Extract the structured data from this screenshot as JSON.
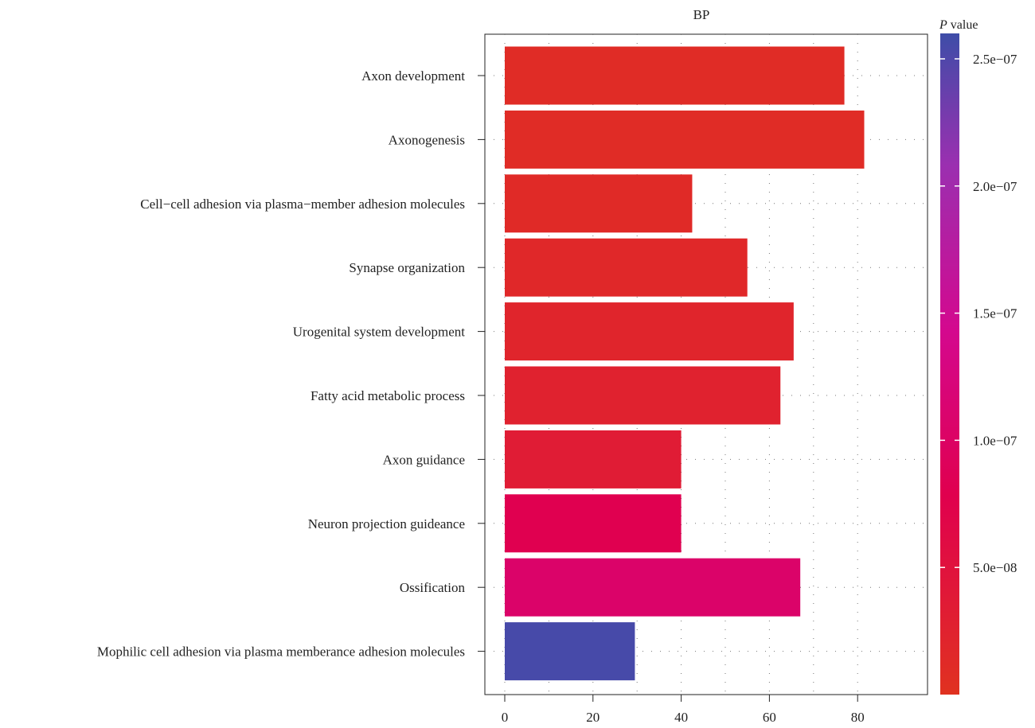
{
  "chart_data": {
    "type": "bar",
    "orientation": "horizontal",
    "title": "BP",
    "categories": [
      "Axon development",
      "Axonogenesis",
      "Cell−cell adhesion via plasma−member adhesion molecules",
      "Synapse organization",
      "Urogenital system development",
      "Fatty acid metabolic process",
      "Axon guidance",
      "Neuron projection guideance",
      "Ossification",
      "Mophilic cell adhesion via plasma memberance adhesion molecules"
    ],
    "values": [
      77,
      81.5,
      42.5,
      55,
      65.5,
      62.5,
      40,
      40,
      67,
      29.5
    ],
    "p_values": [
      1e-08,
      1e-08,
      1.2e-08,
      1.5e-08,
      2e-08,
      2.5e-08,
      3.5e-08,
      8e-08,
      1.05e-07,
      2.55e-07
    ],
    "xlim": [
      0,
      87
    ],
    "x_ticks": [
      "0",
      "20",
      "40",
      "60",
      "80"
    ],
    "x_tick_values": [
      0,
      20,
      40,
      60,
      80
    ],
    "xlabel": "",
    "ylabel": "",
    "grid": true,
    "legend": {
      "title_italic": "P",
      "title_rest": " value",
      "placement": "right",
      "ticks": [
        "2.5e−07",
        "2.0e−07",
        "1.5e−07",
        "1.0e−07",
        "5.0e−08"
      ],
      "tick_values": [
        2.5e-07,
        2e-07,
        1.5e-07,
        1e-07,
        5e-08
      ],
      "range": [
        0,
        2.6e-07
      ],
      "colors": [
        "#E03220",
        "#E0004E",
        "#D4088E",
        "#9B2FB0",
        "#3E4DA8"
      ]
    }
  }
}
